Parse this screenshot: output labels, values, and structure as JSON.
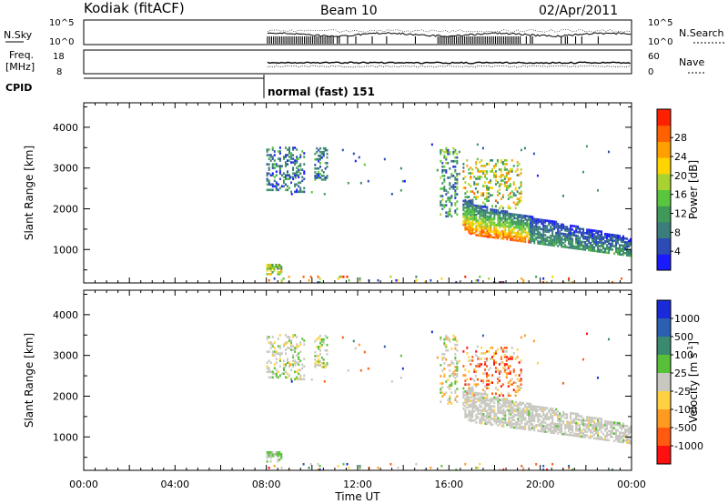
{
  "header": {
    "station": "Kodiak (fitACF)",
    "beam": "Beam 10",
    "date": "02/Apr/2011"
  },
  "noise_panel": {
    "left_label": "N.Sky",
    "right_label": "N.Search",
    "left_ticks": [
      "10^5",
      "10^0"
    ],
    "right_ticks": [
      "10^5",
      "10^0"
    ]
  },
  "freq_panel": {
    "left_label_1": "Freq.",
    "left_label_2": "[MHz]",
    "right_label": "Nave",
    "left_ticks": [
      "18",
      "8"
    ],
    "right_ticks": [
      "60",
      "0"
    ]
  },
  "cpid": {
    "label": "CPID",
    "mode": "normal (fast) 151"
  },
  "chart_data": [
    {
      "type": "heatmap",
      "name": "power",
      "ylabel": "Slant Range [km]",
      "ylim": [
        180,
        4600
      ],
      "yticks": [
        "1000",
        "2000",
        "3000",
        "4000"
      ],
      "xlim_hours": [
        0,
        24
      ],
      "colorbar": {
        "label": "Power [dB]",
        "ticks": [
          "4",
          "8",
          "12",
          "16",
          "20",
          "24",
          "28"
        ],
        "colors": [
          "#1a1aff",
          "#2c4bb4",
          "#3a7d7a",
          "#3f9a5a",
          "#5ac640",
          "#a8d230",
          "#ffd400",
          "#ffa000",
          "#ff6000",
          "#ff2000"
        ]
      }
    },
    {
      "type": "heatmap",
      "name": "velocity",
      "ylabel": "Slant Range [km]",
      "ylim": [
        180,
        4600
      ],
      "yticks": [
        "1000",
        "2000",
        "3000",
        "4000"
      ],
      "xlim_hours": [
        0,
        24
      ],
      "xlabel": "Time UT",
      "xticks": [
        "00:00",
        "04:00",
        "08:00",
        "12:00",
        "16:00",
        "20:00",
        "00:00"
      ],
      "colorbar": {
        "label": "Velocity [m s^-1]",
        "ticks": [
          "1000",
          "500",
          "100",
          "25",
          "-25",
          "-100",
          "-500",
          "-1000"
        ],
        "colors": [
          "#1a2ad8",
          "#2c5fb0",
          "#3a8a70",
          "#58c038",
          "#c8c8c0",
          "#ffd040",
          "#ff9a20",
          "#ff5a10",
          "#ff1010"
        ]
      }
    }
  ]
}
